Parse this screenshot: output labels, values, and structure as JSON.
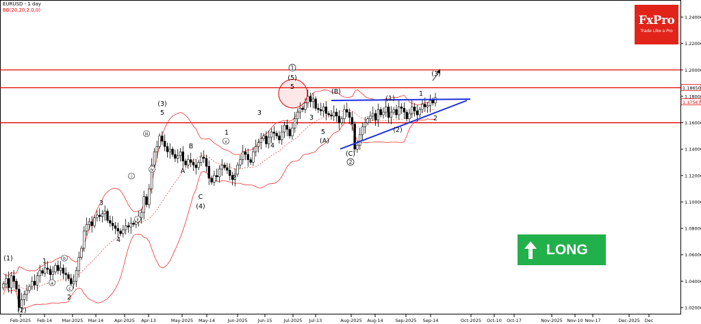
{
  "header": {
    "symbol": "EURUSD - 1 day",
    "indicator": "BB(20,20,2.0,0)"
  },
  "logo": {
    "brand": "FxPro",
    "tagline": "Trade Like a Pro"
  },
  "badge": {
    "label": "LONG",
    "color": "#22b04b"
  },
  "colors": {
    "level": "#e00000",
    "triangle": "#1a2ee0",
    "band": "#f03030",
    "candle": "#000000",
    "price_tag": "#e00000"
  },
  "chart_data": {
    "type": "candlestick",
    "instrument": "EURUSD",
    "timeframe": "1 day",
    "ylim": [
      1.012,
      1.25
    ],
    "y_ticks": [
      "1.24000",
      "1.22000",
      "1.20000",
      "1.18000",
      "1.16000",
      "1.14000",
      "1.12000",
      "1.10000",
      "1.08000",
      "1.06000",
      "1.04000",
      "1.02000"
    ],
    "price_tags": [
      "1.18650",
      "1.17567"
    ],
    "x_ticks": [
      "Feb-2025",
      "Feb-14",
      "Mar-2025",
      "Mar-14",
      "Apr-2025",
      "Apr-13",
      "May-2025",
      "May-14",
      "Jun-2025",
      "Jun-15",
      "Jul-2025",
      "Jul-13",
      "Aug-2025",
      "Aug-14",
      "Sep-2025",
      "Sep-14",
      "Oct-2025",
      "Oct-10",
      "Oct-17",
      "Nov-2025",
      "Nov-10",
      "Nov-17",
      "Dec-2025",
      "Dec"
    ],
    "horizontal_levels": [
      1.2,
      1.1865,
      1.16
    ],
    "closes": [
      1.038,
      1.042,
      1.035,
      1.044,
      1.04,
      1.034,
      1.02,
      1.026,
      1.03,
      1.033,
      1.036,
      1.04,
      1.037,
      1.044,
      1.048,
      1.046,
      1.05,
      1.049,
      1.045,
      1.047,
      1.052,
      1.048,
      1.05,
      1.046,
      1.045,
      1.042,
      1.038,
      1.04,
      1.048,
      1.058,
      1.065,
      1.078,
      1.083,
      1.085,
      1.082,
      1.088,
      1.09,
      1.089,
      1.091,
      1.093,
      1.086,
      1.084,
      1.082,
      1.08,
      1.078,
      1.076,
      1.079,
      1.082,
      1.081,
      1.084,
      1.083,
      1.085,
      1.088,
      1.092,
      1.104,
      1.098,
      1.11,
      1.128,
      1.138,
      1.142,
      1.15,
      1.146,
      1.142,
      1.138,
      1.14,
      1.136,
      1.133,
      1.135,
      1.138,
      1.131,
      1.128,
      1.132,
      1.13,
      1.128,
      1.126,
      1.13,
      1.134,
      1.133,
      1.127,
      1.118,
      1.115,
      1.12,
      1.119,
      1.125,
      1.128,
      1.126,
      1.124,
      1.12,
      1.117,
      1.121,
      1.128,
      1.132,
      1.138,
      1.136,
      1.132,
      1.13,
      1.138,
      1.142,
      1.145,
      1.148,
      1.15,
      1.144,
      1.149,
      1.153,
      1.152,
      1.15,
      1.147,
      1.153,
      1.158,
      1.155,
      1.15,
      1.156,
      1.163,
      1.168,
      1.171,
      1.17,
      1.175,
      1.18,
      1.176,
      1.178,
      1.171,
      1.17,
      1.169,
      1.172,
      1.167,
      1.166,
      1.165,
      1.168,
      1.165,
      1.16,
      1.163,
      1.17,
      1.168,
      1.164,
      1.159,
      1.14,
      1.143,
      1.151,
      1.157,
      1.16,
      1.163,
      1.165,
      1.167,
      1.162,
      1.17,
      1.166,
      1.168,
      1.172,
      1.164,
      1.168,
      1.17,
      1.166,
      1.172,
      1.171,
      1.168,
      1.163,
      1.167,
      1.172,
      1.169,
      1.166,
      1.17,
      1.174,
      1.172,
      1.173,
      1.177,
      1.175,
      1.179
    ],
    "labels": [
      "(1)",
      "(2)",
      "1",
      "2",
      "3",
      "4",
      "(3)",
      "5",
      "A",
      "B",
      "C",
      "(4)",
      "2",
      "1",
      "3",
      "4",
      "5",
      "(5)",
      "3",
      "(B)",
      "5",
      "(A)",
      "(C)",
      "(1)",
      "(2)",
      "1",
      "2",
      "(3)",
      "i",
      "ii",
      "iii",
      "iv",
      "v",
      "a",
      "b",
      "c"
    ]
  }
}
